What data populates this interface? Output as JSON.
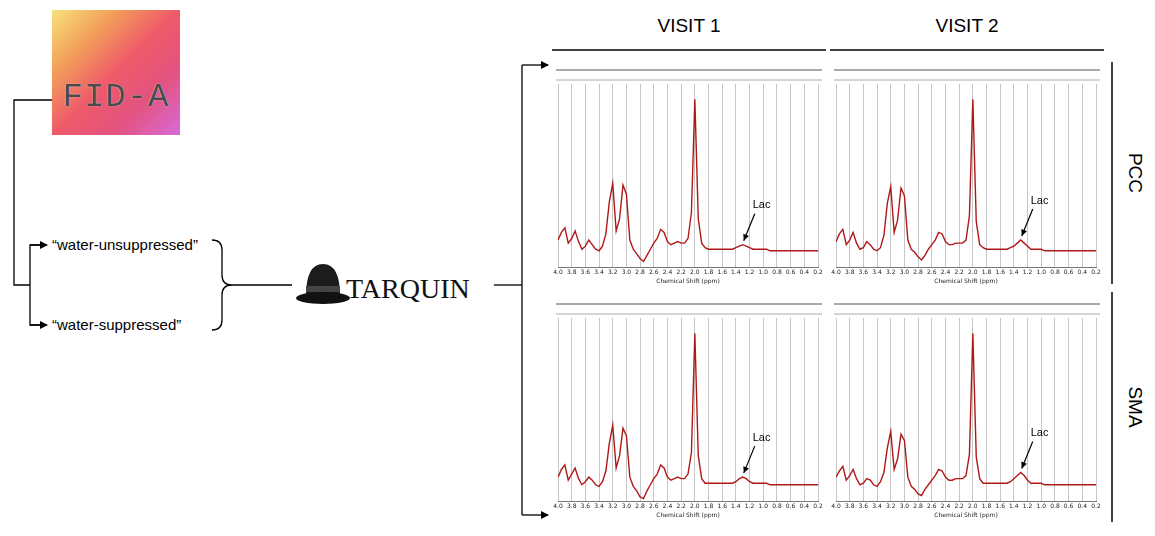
{
  "pipeline": {
    "logo": "FID-A",
    "inputs": [
      "“water-unsuppressed”",
      "“water-suppressed”"
    ],
    "software": "TARQUIN"
  },
  "columns": [
    "VISIT 1",
    "VISIT 2"
  ],
  "rows": [
    "PCC",
    "SMA"
  ],
  "chart_data": [
    {
      "type": "line",
      "x_label": "Chemical Shift (ppm)",
      "x": [
        4.0,
        3.95,
        3.9,
        3.85,
        3.8,
        3.75,
        3.7,
        3.65,
        3.6,
        3.55,
        3.5,
        3.45,
        3.4,
        3.35,
        3.3,
        3.25,
        3.2,
        3.15,
        3.1,
        3.05,
        3.0,
        2.95,
        2.9,
        2.85,
        2.8,
        2.75,
        2.7,
        2.65,
        2.6,
        2.55,
        2.5,
        2.45,
        2.4,
        2.35,
        2.3,
        2.25,
        2.2,
        2.15,
        2.1,
        2.05,
        2.0,
        1.95,
        1.9,
        1.85,
        1.8,
        1.75,
        1.7,
        1.65,
        1.6,
        1.55,
        1.5,
        1.45,
        1.4,
        1.35,
        1.3,
        1.25,
        1.2,
        1.15,
        1.1,
        1.05,
        1.0,
        0.95,
        0.9,
        0.85,
        0.8,
        0.75,
        0.7,
        0.65,
        0.6,
        0.55,
        0.5,
        0.45,
        0.4,
        0.35,
        0.3,
        0.25,
        0.2
      ],
      "series": [
        {
          "color": "#b01818",
          "values": [
            8,
            13,
            16,
            6,
            9,
            14,
            7,
            2,
            4,
            8,
            5,
            2,
            1,
            4,
            12,
            33,
            45,
            14,
            22,
            44,
            38,
            8,
            2,
            -1,
            -4,
            -6,
            -2,
            2,
            6,
            9,
            15,
            13,
            7,
            5,
            6,
            7,
            6,
            6,
            9,
            26,
            100,
            22,
            6,
            3,
            2,
            2,
            2,
            2,
            2,
            2,
            2,
            2,
            3,
            4,
            5,
            4,
            3,
            2,
            2,
            2,
            2,
            2,
            1,
            1,
            1,
            1,
            1,
            1,
            1,
            1,
            1,
            1,
            1,
            1,
            1,
            1,
            1
          ]
        }
      ],
      "xlim": [
        4.0,
        0.2
      ],
      "ylim": [
        -10,
        110
      ],
      "xticks": [
        {
          "value": 4,
          "label": "4.0"
        },
        3.8,
        3.6,
        3.4,
        3.2,
        {
          "value": 3,
          "label": "3.0"
        },
        2.8,
        2.6,
        2.4,
        2.2,
        {
          "value": 2,
          "label": "2.0"
        },
        1.8,
        1.6,
        1.4,
        1.2,
        {
          "value": 1,
          "label": "1.0"
        },
        0.8,
        0.6,
        0.4,
        0.2
      ],
      "tick_labels": "x",
      "grid": true,
      "annotations": [
        {
          "text": "Lac",
          "x": 1.3
        }
      ]
    },
    {
      "type": "line",
      "x_label": "Chemical Shift (ppm)",
      "x": [
        4.0,
        3.95,
        3.9,
        3.85,
        3.8,
        3.75,
        3.7,
        3.65,
        3.6,
        3.55,
        3.5,
        3.45,
        3.4,
        3.35,
        3.3,
        3.25,
        3.2,
        3.15,
        3.1,
        3.05,
        3.0,
        2.95,
        2.9,
        2.85,
        2.8,
        2.75,
        2.7,
        2.65,
        2.6,
        2.55,
        2.5,
        2.45,
        2.4,
        2.35,
        2.3,
        2.25,
        2.2,
        2.15,
        2.1,
        2.05,
        2.0,
        1.95,
        1.9,
        1.85,
        1.8,
        1.75,
        1.7,
        1.65,
        1.6,
        1.55,
        1.5,
        1.45,
        1.4,
        1.35,
        1.3,
        1.25,
        1.2,
        1.15,
        1.1,
        1.05,
        1.0,
        0.95,
        0.9,
        0.85,
        0.8,
        0.75,
        0.7,
        0.65,
        0.6,
        0.55,
        0.5,
        0.45,
        0.4,
        0.35,
        0.3,
        0.25,
        0.2
      ],
      "series": [
        {
          "color": "#b01818",
          "values": [
            7,
            12,
            15,
            5,
            8,
            13,
            6,
            2,
            3,
            7,
            5,
            2,
            1,
            3,
            11,
            32,
            43,
            13,
            21,
            42,
            37,
            8,
            2,
            0,
            -3,
            -5,
            -2,
            2,
            5,
            8,
            13,
            12,
            7,
            5,
            5,
            6,
            6,
            6,
            8,
            24,
            100,
            20,
            5,
            3,
            2,
            2,
            2,
            2,
            2,
            2,
            2,
            3,
            4,
            6,
            8,
            6,
            4,
            2,
            2,
            2,
            2,
            1,
            1,
            1,
            1,
            1,
            1,
            1,
            1,
            1,
            1,
            1,
            1,
            1,
            1,
            1,
            1
          ]
        }
      ],
      "xlim": [
        4.0,
        0.2
      ],
      "ylim": [
        -10,
        110
      ],
      "xticks": [
        {
          "value": 4,
          "label": "4.0"
        },
        3.8,
        3.6,
        3.4,
        3.2,
        {
          "value": 3,
          "label": "3.0"
        },
        2.8,
        2.6,
        2.4,
        2.2,
        {
          "value": 2,
          "label": "2.0"
        },
        1.8,
        1.6,
        1.4,
        1.2,
        {
          "value": 1,
          "label": "1.0"
        },
        0.8,
        0.6,
        0.4,
        0.2
      ],
      "tick_labels": "x",
      "grid": true,
      "annotations": [
        {
          "text": "Lac",
          "x": 1.3
        }
      ]
    },
    {
      "type": "line",
      "x_label": "Chemical Shift (ppm)",
      "x": [
        4.0,
        3.95,
        3.9,
        3.85,
        3.8,
        3.75,
        3.7,
        3.65,
        3.6,
        3.55,
        3.5,
        3.45,
        3.4,
        3.35,
        3.3,
        3.25,
        3.2,
        3.15,
        3.1,
        3.05,
        3.0,
        2.95,
        2.9,
        2.85,
        2.8,
        2.75,
        2.7,
        2.65,
        2.6,
        2.55,
        2.5,
        2.45,
        2.4,
        2.35,
        2.3,
        2.25,
        2.2,
        2.15,
        2.1,
        2.05,
        2.0,
        1.95,
        1.9,
        1.85,
        1.8,
        1.75,
        1.7,
        1.65,
        1.6,
        1.55,
        1.5,
        1.45,
        1.4,
        1.35,
        1.3,
        1.25,
        1.2,
        1.15,
        1.1,
        1.05,
        1.0,
        0.95,
        0.9,
        0.85,
        0.8,
        0.75,
        0.7,
        0.65,
        0.6,
        0.55,
        0.5,
        0.45,
        0.4,
        0.35,
        0.3,
        0.25,
        0.2
      ],
      "series": [
        {
          "color": "#b01818",
          "values": [
            6,
            11,
            14,
            4,
            8,
            12,
            5,
            1,
            3,
            6,
            4,
            1,
            0,
            3,
            10,
            28,
            40,
            12,
            20,
            38,
            33,
            6,
            0,
            -3,
            -7,
            -8,
            -3,
            1,
            5,
            8,
            14,
            12,
            6,
            4,
            5,
            6,
            5,
            5,
            8,
            22,
            100,
            20,
            5,
            2,
            2,
            2,
            2,
            2,
            2,
            2,
            2,
            2,
            3,
            5,
            6,
            5,
            3,
            2,
            2,
            2,
            2,
            2,
            1,
            1,
            1,
            1,
            1,
            1,
            1,
            1,
            1,
            1,
            1,
            1,
            1,
            1,
            1
          ]
        }
      ],
      "xlim": [
        4.0,
        0.2
      ],
      "ylim": [
        -10,
        110
      ],
      "xticks": [
        {
          "value": 4,
          "label": "4.0"
        },
        3.8,
        3.6,
        3.4,
        3.2,
        {
          "value": 3,
          "label": "3.0"
        },
        2.8,
        2.6,
        2.4,
        2.2,
        {
          "value": 2,
          "label": "2.0"
        },
        1.8,
        1.6,
        1.4,
        1.2,
        {
          "value": 1,
          "label": "1.0"
        },
        0.8,
        0.6,
        0.4,
        0.2
      ],
      "tick_labels": "x",
      "grid": true,
      "annotations": [
        {
          "text": "Lac",
          "x": 1.3
        }
      ]
    },
    {
      "type": "line",
      "x_label": "Chemical Shift (ppm)",
      "x": [
        4.0,
        3.95,
        3.9,
        3.85,
        3.8,
        3.75,
        3.7,
        3.65,
        3.6,
        3.55,
        3.5,
        3.45,
        3.4,
        3.35,
        3.3,
        3.25,
        3.2,
        3.15,
        3.1,
        3.05,
        3.0,
        2.95,
        2.9,
        2.85,
        2.8,
        2.75,
        2.7,
        2.65,
        2.6,
        2.55,
        2.5,
        2.45,
        2.4,
        2.35,
        2.3,
        2.25,
        2.2,
        2.15,
        2.1,
        2.05,
        2.0,
        1.95,
        1.9,
        1.85,
        1.8,
        1.75,
        1.7,
        1.65,
        1.6,
        1.55,
        1.5,
        1.45,
        1.4,
        1.35,
        1.3,
        1.25,
        1.2,
        1.15,
        1.1,
        1.05,
        1.0,
        0.95,
        0.9,
        0.85,
        0.8,
        0.75,
        0.7,
        0.65,
        0.6,
        0.55,
        0.5,
        0.45,
        0.4,
        0.35,
        0.3,
        0.25,
        0.2
      ],
      "series": [
        {
          "color": "#b01818",
          "values": [
            6,
            10,
            13,
            4,
            7,
            11,
            5,
            1,
            2,
            5,
            4,
            1,
            0,
            3,
            9,
            25,
            36,
            11,
            18,
            34,
            30,
            6,
            0,
            -2,
            -5,
            -6,
            -2,
            1,
            4,
            7,
            11,
            10,
            6,
            4,
            4,
            5,
            5,
            5,
            7,
            21,
            100,
            19,
            5,
            2,
            2,
            2,
            2,
            2,
            2,
            2,
            2,
            3,
            5,
            7,
            9,
            7,
            4,
            2,
            2,
            2,
            2,
            1,
            1,
            1,
            1,
            1,
            1,
            1,
            1,
            1,
            1,
            1,
            1,
            1,
            1,
            1,
            1
          ]
        }
      ],
      "xlim": [
        4.0,
        0.2
      ],
      "ylim": [
        -10,
        110
      ],
      "xticks": [
        {
          "value": 4,
          "label": "4.0"
        },
        3.8,
        3.6,
        3.4,
        3.2,
        {
          "value": 3,
          "label": "3.0"
        },
        2.8,
        2.6,
        2.4,
        2.2,
        {
          "value": 2,
          "label": "2.0"
        },
        1.8,
        1.6,
        1.4,
        1.2,
        {
          "value": 1,
          "label": "1.0"
        },
        0.8,
        0.6,
        0.4,
        0.2
      ],
      "tick_labels": "x",
      "grid": true,
      "annotations": [
        {
          "text": "Lac",
          "x": 1.3
        }
      ]
    }
  ]
}
